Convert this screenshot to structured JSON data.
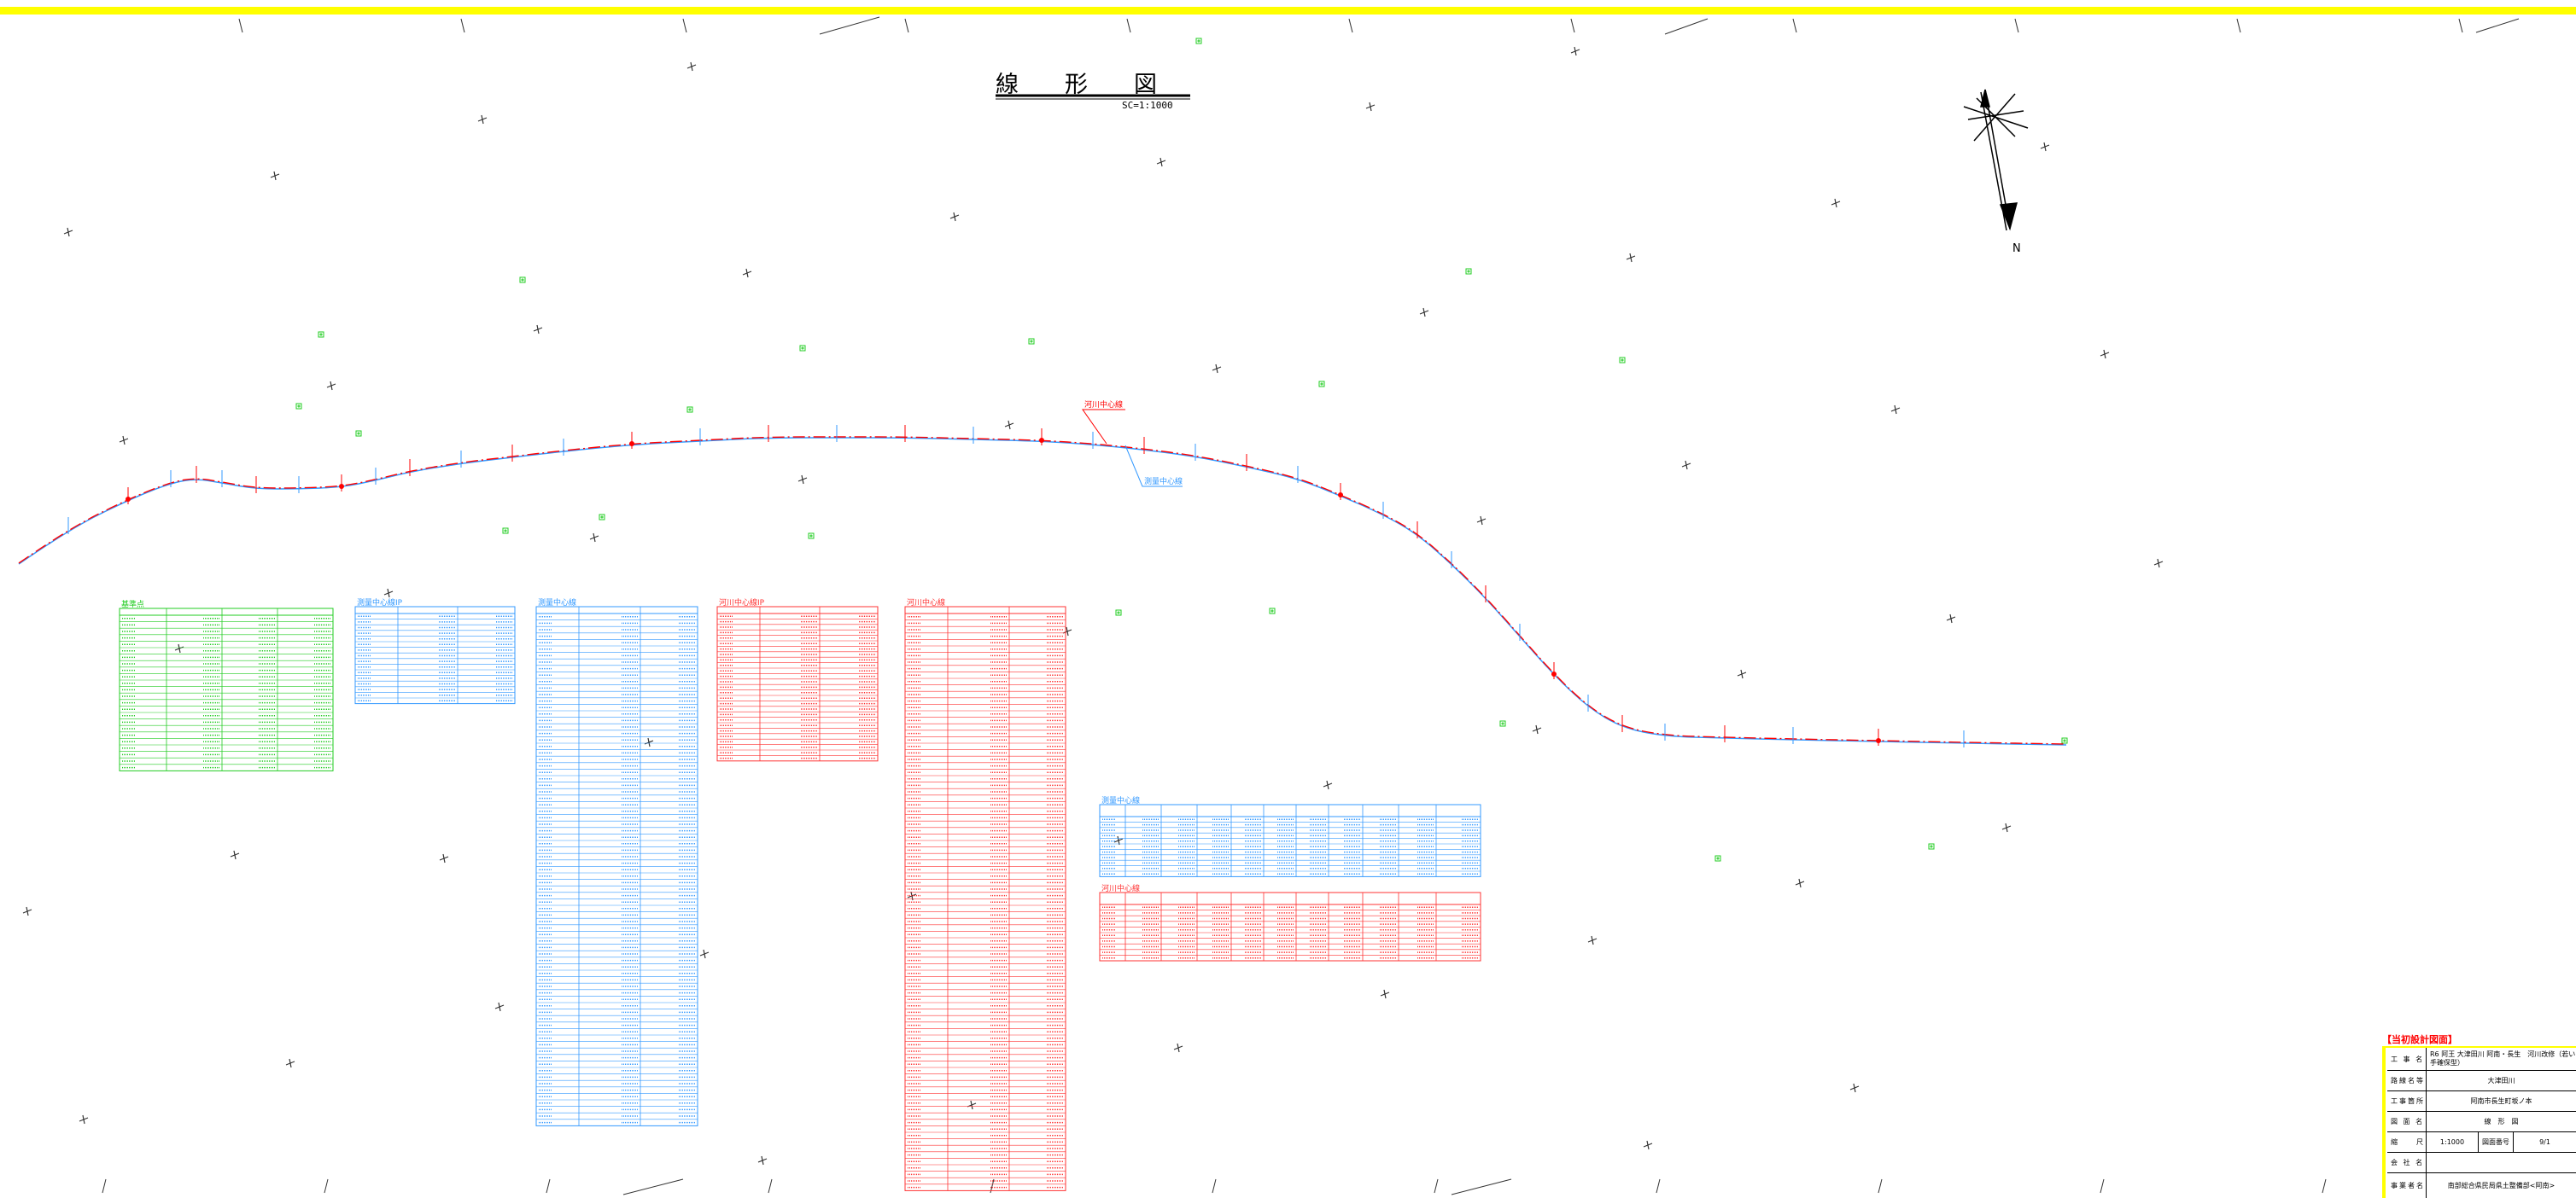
{
  "drawing": {
    "title": "線　　形　　図",
    "scale": "SC=1:1000",
    "north_label": "N",
    "river_center_label": "河川中心線",
    "survey_center_label": "測量中心線"
  },
  "tables": {
    "reference_points": {
      "title": "基準点",
      "color": "#22cc22"
    },
    "survey_ip": {
      "title": "測量中心線IP",
      "color": "#3399ff"
    },
    "survey_center": {
      "title": "測量中心線",
      "color": "#3399ff"
    },
    "river_ip": {
      "title": "河川中心線IP",
      "color": "#ff3333"
    },
    "river_center": {
      "title": "河川中心線",
      "color": "#ff3333"
    },
    "survey_curve": {
      "title": "測量中心線",
      "color": "#3399ff"
    },
    "river_curve": {
      "title": "河川中心線",
      "color": "#ff3333"
    }
  },
  "title_block": {
    "header": "【当初設計図面】",
    "rows": [
      {
        "label": "工 事 名",
        "value": "R6 阿王 大津田川 阿南・長生　河川改修（若い手確保型）"
      },
      {
        "label": "路線名等",
        "value": "大津田川"
      },
      {
        "label": "工事箇所",
        "value": "阿南市長生町坂ノ本"
      },
      {
        "label": "図 面 名",
        "value": "線　形　図"
      },
      {
        "label": "縮　　尺",
        "value": "1:1000",
        "sub_label": "図面番号",
        "sub_value": "9/1"
      },
      {
        "label": "会 社 名",
        "value": ""
      },
      {
        "label": "事業者名",
        "value": "南部総合県民局県土整備部<阿南>"
      }
    ]
  },
  "colors": {
    "top_band": "#ffff00",
    "river_line": "#ff0000",
    "survey_line": "#3399ff",
    "reference": "#22cc22",
    "ink": "#000000"
  }
}
